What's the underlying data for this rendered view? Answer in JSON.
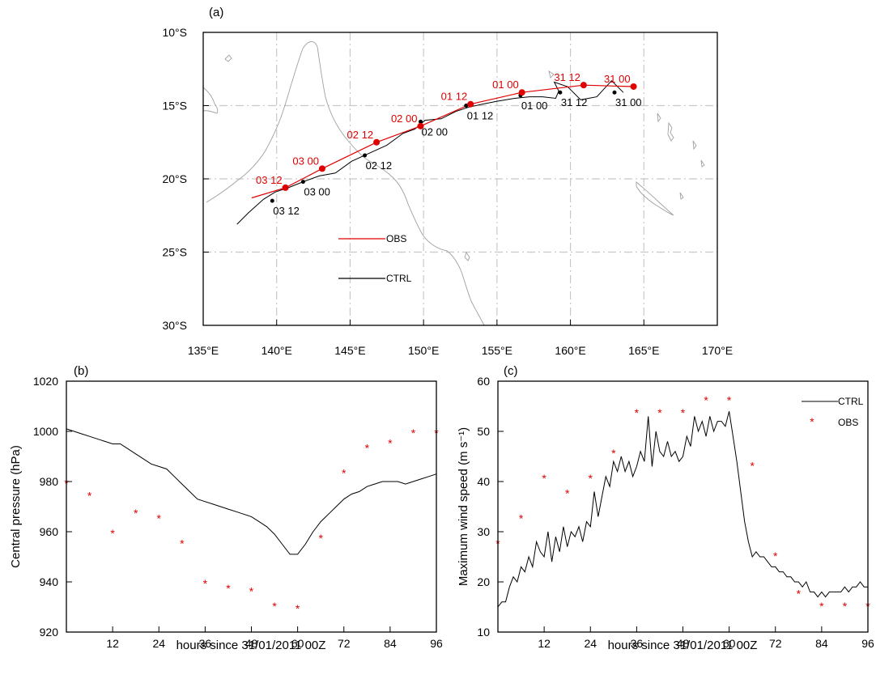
{
  "colors": {
    "obs": "#e00000",
    "ctrl": "#000000",
    "grid": "#c8c8c8",
    "coast": "#a0a0a0"
  },
  "chart_data": [
    {
      "panel": "(a)",
      "type": "line",
      "xlabel": "",
      "ylabel": "",
      "xlim": [
        135,
        170
      ],
      "ylim": [
        -30,
        -10
      ],
      "xticks": [
        135,
        140,
        145,
        150,
        155,
        160,
        165,
        170
      ],
      "xtick_labels": [
        "135°E",
        "140°E",
        "145°E",
        "150°E",
        "155°E",
        "160°E",
        "165°E",
        "170°E"
      ],
      "yticks": [
        -10,
        -15,
        -20,
        -25,
        -30
      ],
      "ytick_labels": [
        "10°S",
        "15°S",
        "20°S",
        "25°S",
        "30°S"
      ],
      "grid": true,
      "legend": {
        "position": "lower-left",
        "entries": [
          "OBS",
          "CTRL"
        ]
      },
      "series": [
        {
          "name": "OBS",
          "lon": [
            164.3,
            160.9,
            156.7,
            153.2,
            149.8,
            146.8,
            143.1,
            140.6,
            138.3
          ],
          "lat": [
            -13.7,
            -13.6,
            -14.1,
            -14.9,
            -16.4,
            -17.5,
            -19.3,
            -20.6,
            -21.3
          ],
          "markers": [
            {
              "label": "31 00",
              "lon": 164.3,
              "lat": -13.7
            },
            {
              "label": "31 12",
              "lon": 160.9,
              "lat": -13.6
            },
            {
              "label": "01 00",
              "lon": 156.7,
              "lat": -14.1
            },
            {
              "label": "01 12",
              "lon": 153.2,
              "lat": -14.9
            },
            {
              "label": "02 00",
              "lon": 149.8,
              "lat": -16.4
            },
            {
              "label": "02 12",
              "lon": 146.8,
              "lat": -17.5
            },
            {
              "label": "03 00",
              "lon": 143.1,
              "lat": -19.3
            },
            {
              "label": "03 12",
              "lon": 140.6,
              "lat": -20.6
            }
          ]
        },
        {
          "name": "CTRL",
          "lon": [
            163.6,
            162.8,
            161.8,
            160.7,
            159.8,
            158.9,
            159.2,
            159.0,
            158.1,
            157.2,
            156.2,
            155.0,
            154.0,
            153.1,
            152.2,
            151.2,
            150.1,
            149.4,
            148.6,
            147.5,
            146.2,
            145.1,
            144.0,
            142.9,
            141.8,
            140.8,
            139.9,
            139.1,
            138.1,
            137.3
          ],
          "lat": [
            -14.1,
            -13.3,
            -14.4,
            -14.6,
            -13.7,
            -13.4,
            -14.0,
            -14.5,
            -14.4,
            -14.4,
            -14.5,
            -14.7,
            -14.9,
            -15.1,
            -15.4,
            -15.9,
            -16.0,
            -16.6,
            -16.9,
            -17.7,
            -18.3,
            -18.8,
            -19.6,
            -19.8,
            -20.2,
            -20.6,
            -20.9,
            -21.4,
            -22.3,
            -23.1
          ],
          "markers": [
            {
              "label": "31 00",
              "lon": 163.0,
              "lat": -14.1
            },
            {
              "label": "31 12",
              "lon": 159.3,
              "lat": -14.1
            },
            {
              "label": "01 00",
              "lon": 156.6,
              "lat": -14.3
            },
            {
              "label": "01 12",
              "lon": 152.9,
              "lat": -15.0
            },
            {
              "label": "02 00",
              "lon": 149.8,
              "lat": -16.1
            },
            {
              "label": "02 12",
              "lon": 146.0,
              "lat": -18.4
            },
            {
              "label": "03 00",
              "lon": 141.8,
              "lat": -20.2
            },
            {
              "label": "03 12",
              "lon": 139.7,
              "lat": -21.5
            }
          ]
        }
      ]
    },
    {
      "panel": "(b)",
      "type": "line",
      "xlabel": "hours since 31/01/2011 00Z",
      "ylabel": "Central pressure (hPa)",
      "xlim": [
        0,
        96
      ],
      "ylim": [
        920,
        1020
      ],
      "xticks": [
        12,
        24,
        36,
        48,
        60,
        72,
        84,
        96
      ],
      "yticks": [
        920,
        940,
        960,
        980,
        1000,
        1020
      ],
      "series": [
        {
          "name": "CTRL",
          "x": [
            0,
            2,
            4,
            6,
            8,
            10,
            12,
            14,
            16,
            18,
            20,
            22,
            24,
            26,
            28,
            30,
            32,
            34,
            36,
            38,
            40,
            42,
            44,
            46,
            48,
            50,
            52,
            54,
            56,
            58,
            60,
            62,
            64,
            66,
            68,
            70,
            72,
            74,
            76,
            78,
            80,
            82,
            84,
            86,
            88,
            90,
            92,
            94,
            96
          ],
          "y": [
            1001,
            1000,
            999,
            998,
            997,
            996,
            995,
            995,
            993,
            991,
            989,
            987,
            986,
            985,
            982,
            979,
            976,
            973,
            972,
            971,
            970,
            969,
            968,
            967,
            966,
            964,
            962,
            959,
            955,
            951,
            951,
            955,
            960,
            964,
            967,
            970,
            973,
            975,
            976,
            978,
            979,
            980,
            980,
            980,
            979,
            980,
            981,
            982,
            983
          ]
        },
        {
          "name": "OBS",
          "x": [
            0,
            6,
            12,
            18,
            24,
            30,
            36,
            42,
            48,
            54,
            60,
            66,
            72,
            78,
            84,
            90,
            96
          ],
          "y": [
            980,
            975,
            960,
            968,
            966,
            956,
            940,
            938,
            937,
            931,
            930,
            958,
            984,
            994,
            996,
            1000,
            1000
          ]
        }
      ]
    },
    {
      "panel": "(c)",
      "type": "line",
      "xlabel": "hours since 31/01/2011 00Z",
      "ylabel": "Maximum wind speed (m s⁻¹)",
      "xlim": [
        0,
        96
      ],
      "ylim": [
        10,
        60
      ],
      "xticks": [
        12,
        24,
        36,
        48,
        60,
        72,
        84,
        96
      ],
      "yticks": [
        10,
        20,
        30,
        40,
        50,
        60
      ],
      "legend": {
        "position": "top-right",
        "entries": [
          "CTRL",
          "OBS"
        ]
      },
      "series": [
        {
          "name": "CTRL",
          "x": [
            0,
            1,
            2,
            3,
            4,
            5,
            6,
            7,
            8,
            9,
            10,
            11,
            12,
            13,
            14,
            15,
            16,
            17,
            18,
            19,
            20,
            21,
            22,
            23,
            24,
            25,
            26,
            27,
            28,
            29,
            30,
            31,
            32,
            33,
            34,
            35,
            36,
            37,
            38,
            39,
            40,
            41,
            42,
            43,
            44,
            45,
            46,
            47,
            48,
            49,
            50,
            51,
            52,
            53,
            54,
            55,
            56,
            57,
            58,
            59,
            60,
            61,
            62,
            63,
            64,
            65,
            66,
            67,
            68,
            69,
            70,
            71,
            72,
            73,
            74,
            75,
            76,
            77,
            78,
            79,
            80,
            81,
            82,
            83,
            84,
            85,
            86,
            87,
            88,
            89,
            90,
            91,
            92,
            93,
            94,
            95,
            96
          ],
          "y": [
            15,
            16,
            16,
            19,
            21,
            20,
            23,
            22,
            25,
            23,
            28,
            26,
            25,
            30,
            24,
            29,
            26,
            31,
            27,
            30,
            29,
            31,
            28,
            32,
            31,
            38,
            33,
            37,
            41,
            39,
            44,
            42,
            45,
            42,
            44,
            41,
            43,
            46,
            44,
            53,
            43,
            50,
            46,
            45,
            48,
            45,
            46,
            44,
            45,
            49,
            47,
            53,
            50,
            52,
            49,
            53,
            50,
            52,
            52,
            51,
            54,
            49,
            44,
            38,
            32,
            28,
            25,
            26,
            25,
            25,
            24,
            23,
            23,
            22,
            22,
            21,
            21,
            20,
            20,
            19,
            20,
            18,
            18,
            17,
            18,
            17,
            18,
            18,
            18,
            18,
            19,
            18,
            19,
            19,
            20,
            19,
            19
          ]
        },
        {
          "name": "OBS",
          "x": [
            0,
            6,
            12,
            18,
            24,
            30,
            36,
            42,
            48,
            54,
            60,
            66,
            72,
            78,
            84,
            90,
            96
          ],
          "y": [
            28,
            33,
            41,
            38,
            41,
            46,
            54,
            54,
            54,
            56.5,
            56.5,
            43.5,
            25.5,
            18,
            15.5,
            15.5,
            15.5
          ]
        }
      ]
    }
  ]
}
